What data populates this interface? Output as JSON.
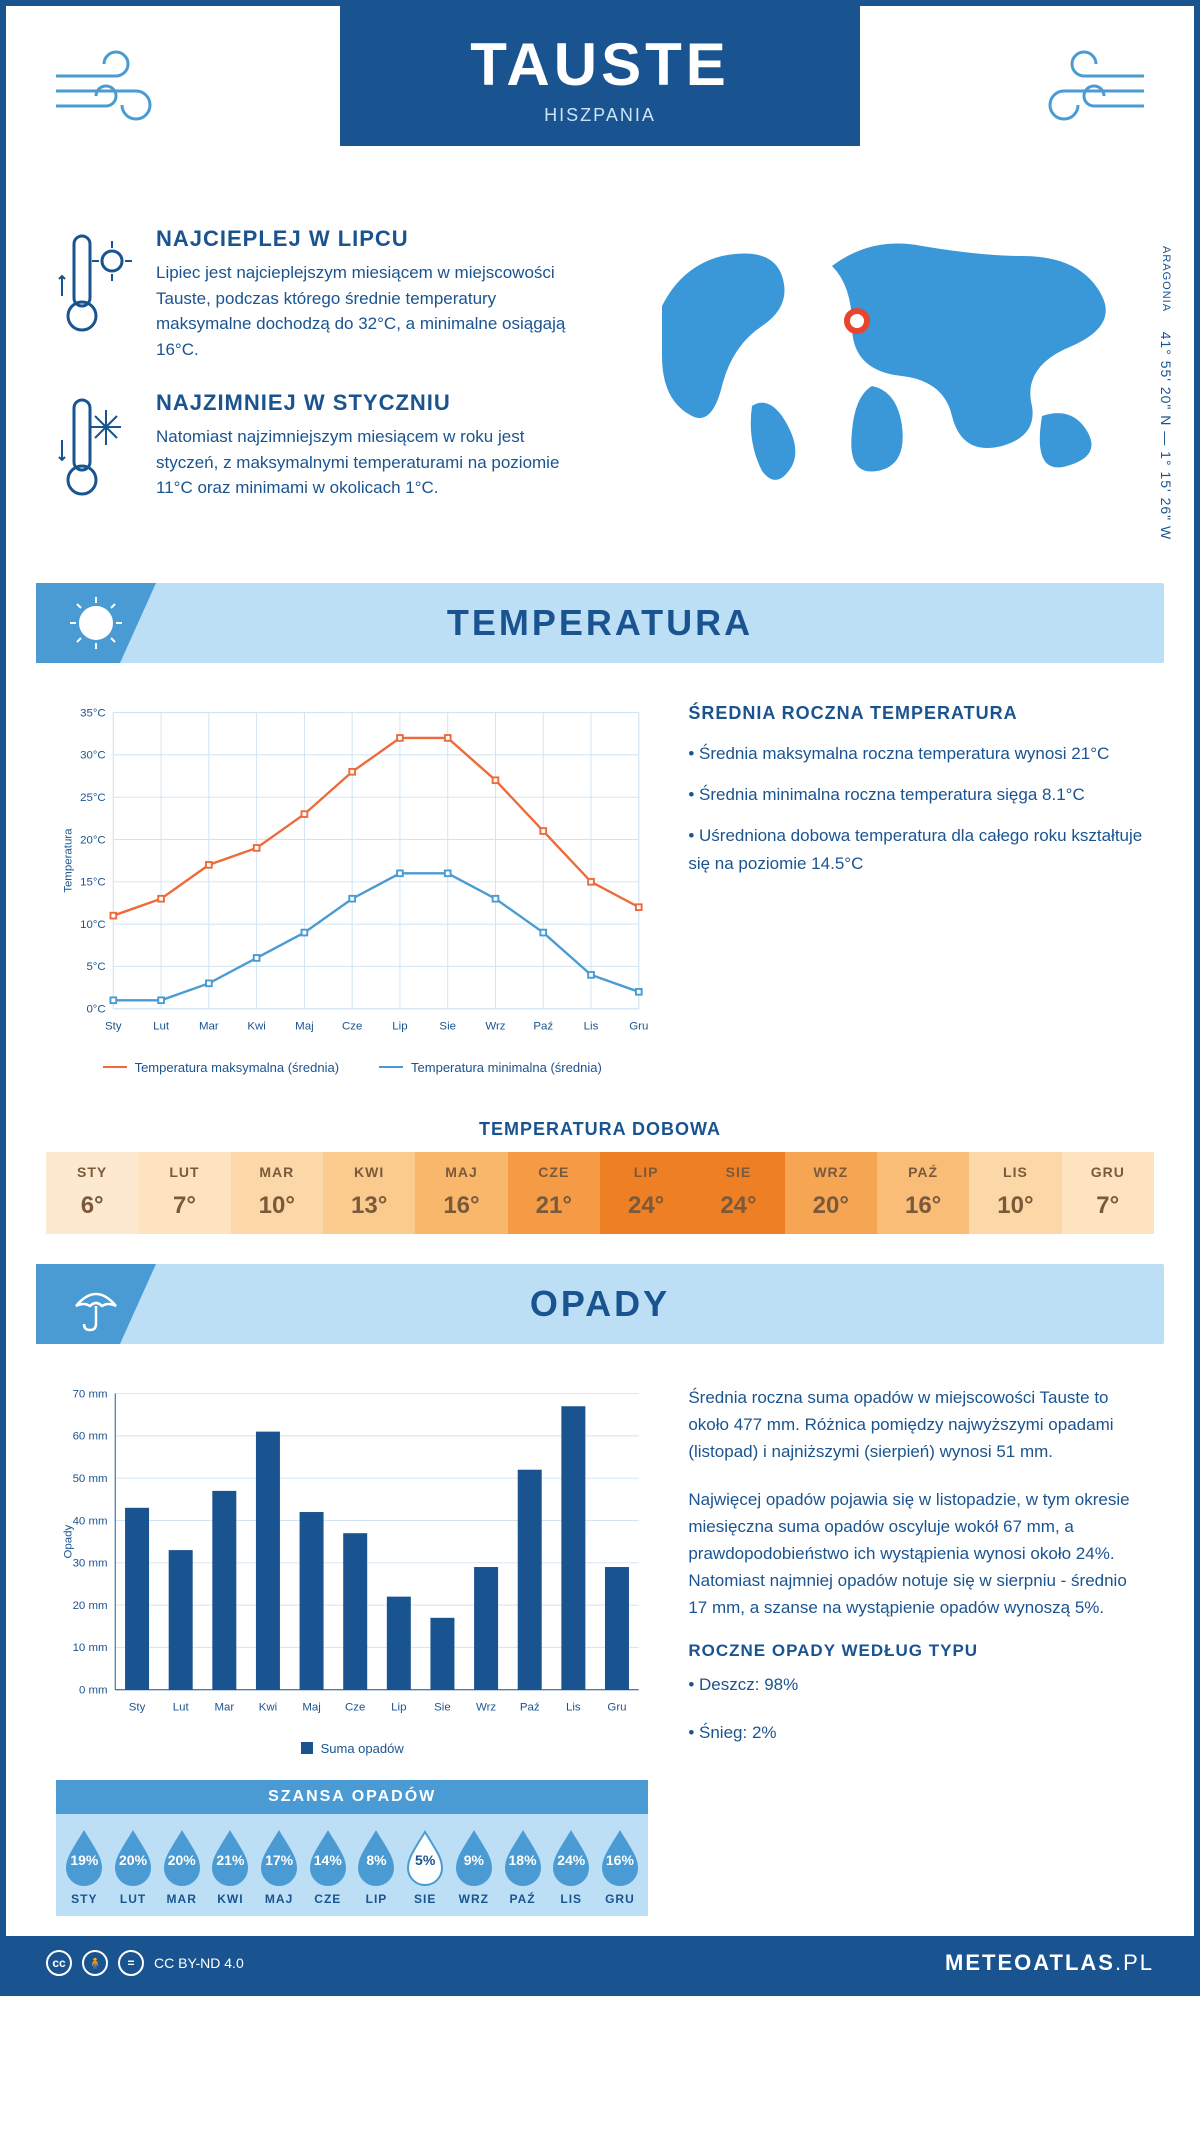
{
  "header": {
    "city": "TAUSTE",
    "country": "HISZPANIA"
  },
  "coords": {
    "region": "ARAGONIA",
    "lat_lon": "41° 55' 20\" N — 1° 15' 26\" W"
  },
  "facts": {
    "hot": {
      "title": "NAJCIEPLEJ W LIPCU",
      "body": "Lipiec jest najcieplejszym miesiącem w miejscowości Tauste, podczas którego średnie temperatury maksymalne dochodzą do 32°C, a minimalne osiągają 16°C."
    },
    "cold": {
      "title": "NAJZIMNIEJ W STYCZNIU",
      "body": "Natomiast najzimniejszym miesiącem w roku jest styczeń, z maksymalnymi temperaturami na poziomie 11°C oraz minimami w okolicach 1°C."
    }
  },
  "temperature": {
    "section_title": "TEMPERATURA",
    "chart": {
      "type": "line",
      "months": [
        "Sty",
        "Lut",
        "Mar",
        "Kwi",
        "Maj",
        "Cze",
        "Lip",
        "Sie",
        "Wrz",
        "Paź",
        "Lis",
        "Gru"
      ],
      "max_series": [
        11,
        13,
        17,
        19,
        23,
        28,
        32,
        32,
        27,
        21,
        15,
        12
      ],
      "min_series": [
        1,
        1,
        3,
        6,
        9,
        13,
        16,
        16,
        13,
        9,
        4,
        2
      ],
      "ylabel": "Temperatura",
      "ylim": [
        0,
        35
      ],
      "ytick_step": 5,
      "max_color": "#ed6b3a",
      "min_color": "#4a9bd4",
      "grid_color": "#d0e4f2",
      "tick_fontsize": 12,
      "label_fontsize": 12,
      "legend_max": "Temperatura maksymalna (średnia)",
      "legend_min": "Temperatura minimalna (średnia)"
    },
    "annual": {
      "title": "ŚREDNIA ROCZNA TEMPERATURA",
      "b1": "• Średnia maksymalna roczna temperatura wynosi 21°C",
      "b2": "• Średnia minimalna roczna temperatura sięga 8.1°C",
      "b3": "• Uśredniona dobowa temperatura dla całego roku kształtuje się na poziomie 14.5°C"
    },
    "daily": {
      "title": "TEMPERATURA DOBOWA",
      "months": [
        "STY",
        "LUT",
        "MAR",
        "KWI",
        "MAJ",
        "CZE",
        "LIP",
        "SIE",
        "WRZ",
        "PAŹ",
        "LIS",
        "GRU"
      ],
      "values": [
        "6°",
        "7°",
        "10°",
        "13°",
        "16°",
        "21°",
        "24°",
        "24°",
        "20°",
        "16°",
        "10°",
        "7°"
      ],
      "colors": [
        "#fde9cf",
        "#fde3c0",
        "#fcd7a7",
        "#fbca8d",
        "#f9b76c",
        "#f59a45",
        "#ee7f24",
        "#ee7f24",
        "#f6a653",
        "#f9bd78",
        "#fcd7a7",
        "#fde3c0"
      ]
    }
  },
  "precip": {
    "section_title": "OPADY",
    "chart": {
      "type": "bar",
      "months": [
        "Sty",
        "Lut",
        "Mar",
        "Kwi",
        "Maj",
        "Cze",
        "Lip",
        "Sie",
        "Wrz",
        "Paź",
        "Lis",
        "Gru"
      ],
      "values": [
        43,
        33,
        47,
        61,
        42,
        37,
        22,
        17,
        29,
        52,
        67,
        29
      ],
      "bar_color": "#1a5490",
      "ylabel": "Opady",
      "ylim": [
        0,
        70
      ],
      "ytick_step": 10,
      "grid_color": "#d0e4f2",
      "bar_width": 0.55,
      "legend": "Suma opadów"
    },
    "text1": "Średnia roczna suma opadów w miejscowości Tauste to około 477 mm. Różnica pomiędzy najwyższymi opadami (listopad) i najniższymi (sierpień) wynosi 51 mm.",
    "text2": "Najwięcej opadów pojawia się w listopadzie, w tym okresie miesięczna suma opadów oscyluje wokół 67 mm, a prawdopodobieństwo ich wystąpienia wynosi około 24%. Natomiast najmniej opadów notuje się w sierpniu - średnio 17 mm, a szanse na wystąpienie opadów wynoszą 5%.",
    "by_type": {
      "title": "ROCZNE OPADY WEDŁUG TYPU",
      "rain": "• Deszcz: 98%",
      "snow": "• Śnieg: 2%"
    },
    "chance": {
      "title": "SZANSA OPADÓW",
      "months": [
        "STY",
        "LUT",
        "MAR",
        "KWI",
        "MAJ",
        "CZE",
        "LIP",
        "SIE",
        "WRZ",
        "PAŹ",
        "LIS",
        "GRU"
      ],
      "values": [
        "19%",
        "20%",
        "20%",
        "21%",
        "17%",
        "14%",
        "8%",
        "5%",
        "9%",
        "18%",
        "24%",
        "16%"
      ],
      "min_index": 7,
      "fill_color": "#4a9bd4",
      "empty_color": "#ffffff"
    }
  },
  "footer": {
    "license": "CC BY-ND 4.0",
    "site_bold": "METEOATLAS",
    "site_rest": ".PL"
  }
}
